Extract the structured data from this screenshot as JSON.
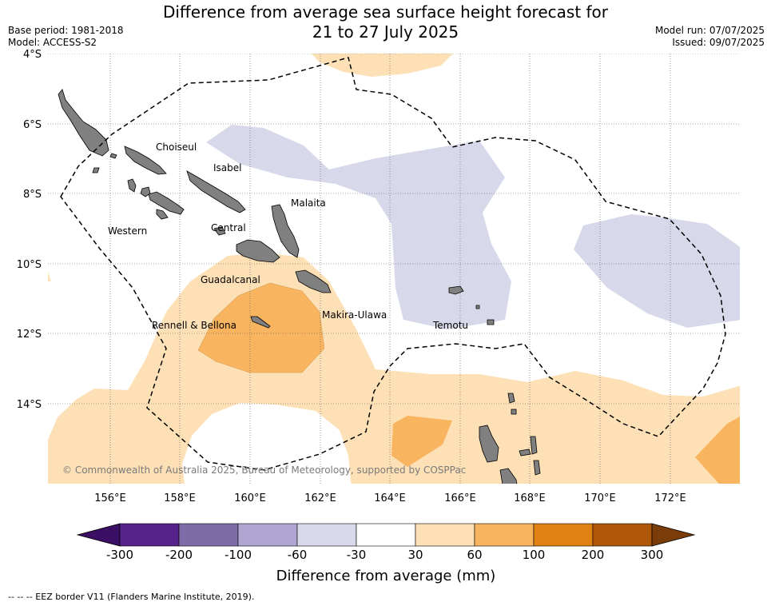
{
  "title_line1": "Difference from average sea surface height forecast for",
  "title_line2": "21 to 27 July 2025",
  "base_period": "Base period: 1981-2018",
  "model": "Model: ACCESS-S2",
  "model_run": "Model run: 07/07/2025",
  "issued": "Issued: 09/07/2025",
  "lat_labels": [
    "4°S",
    "6°S",
    "8°S",
    "10°S",
    "12°S",
    "14°S"
  ],
  "lon_labels": [
    "156°E",
    "158°E",
    "160°E",
    "162°E",
    "164°E",
    "166°E",
    "168°E",
    "170°E",
    "172°E"
  ],
  "regions": [
    "Choiseul",
    "Isabel",
    "Malaita",
    "Western",
    "Central",
    "Guadalcanal",
    "Makira-Ulawa",
    "Rennell & Bellona",
    "Temotu"
  ],
  "copyright": "© Commonwealth of Australia 2025, Bureau of Meteorology, supported by COSPPac",
  "colorbar": {
    "ticks": [
      "-300",
      "-200",
      "-100",
      "-60",
      "-30",
      "30",
      "60",
      "100",
      "200",
      "300"
    ],
    "colors": [
      "#3b0f63",
      "#56238a",
      "#7c6ca8",
      "#aea6d1",
      "#d7d8ea",
      "#ffffff",
      "#fde0b5",
      "#f8b45e",
      "#e08211",
      "#b0580a",
      "#7a3c08"
    ],
    "title": "Difference from average (mm)"
  },
  "footnote": "--  --  -- EEZ border V11 (Flanders Marine Institute, 2019)."
}
